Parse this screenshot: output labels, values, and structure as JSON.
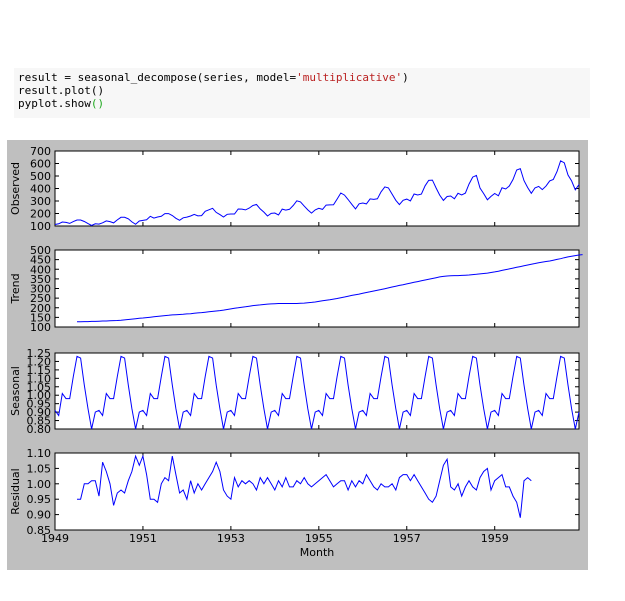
{
  "code": {
    "line1_prefix": "result = seasonal_decompose(series, model=",
    "line1_string": "'multiplicative'",
    "line1_suffix": ")",
    "line2": "result.plot()",
    "line3_prefix": "pyplot.show",
    "line3_paren": "()"
  },
  "colors": {
    "line": "#0000ff",
    "figure_bg": "#bfbfbf",
    "axes_bg": "#ffffff"
  },
  "chart_data": [
    {
      "type": "line",
      "ylabel": "Observed",
      "ylim": [
        100,
        700
      ],
      "yticks": [
        "100",
        "200",
        "300",
        "400",
        "500",
        "600",
        "700"
      ],
      "xlim": [
        1949.0,
        1960.917
      ],
      "start": 1949.0,
      "step": 0.08333,
      "values": [
        112,
        118,
        132,
        129,
        121,
        135,
        148,
        148,
        136,
        119,
        104,
        118,
        115,
        126,
        141,
        135,
        125,
        149,
        170,
        170,
        158,
        133,
        114,
        140,
        145,
        150,
        178,
        163,
        172,
        178,
        199,
        199,
        184,
        162,
        146,
        166,
        171,
        180,
        193,
        181,
        183,
        218,
        230,
        242,
        209,
        191,
        172,
        194,
        196,
        196,
        236,
        235,
        229,
        243,
        264,
        272,
        237,
        211,
        180,
        201,
        204,
        188,
        235,
        227,
        234,
        264,
        302,
        293,
        259,
        229,
        203,
        229,
        242,
        233,
        267,
        269,
        270,
        315,
        364,
        347,
        312,
        274,
        237,
        278,
        284,
        277,
        317,
        313,
        318,
        374,
        413,
        405,
        355,
        306,
        271,
        306,
        315,
        301,
        356,
        348,
        355,
        422,
        465,
        467,
        404,
        347,
        305,
        336,
        340,
        318,
        362,
        348,
        363,
        435,
        491,
        505,
        404,
        359,
        310,
        337,
        360,
        342,
        406,
        396,
        420,
        472,
        548,
        559,
        463,
        407,
        362,
        405,
        417,
        391,
        419,
        461,
        472,
        535,
        622,
        606,
        508,
        461,
        390,
        432
      ]
    },
    {
      "type": "line",
      "ylabel": "Trend",
      "ylim": [
        100,
        500
      ],
      "yticks": [
        "100",
        "150",
        "200",
        "250",
        "300",
        "350",
        "400",
        "450",
        "500"
      ],
      "xlim": [
        1949.0,
        1960.917
      ],
      "start": 1949.5,
      "step": 0.08333,
      "values": [
        127,
        127,
        128,
        128,
        129,
        129,
        130,
        131,
        131,
        132,
        133,
        134,
        135,
        137,
        139,
        141,
        143,
        145,
        147,
        149,
        151,
        153,
        155,
        157,
        159,
        161,
        163,
        164,
        165,
        166,
        168,
        169,
        171,
        173,
        175,
        177,
        179,
        181,
        183,
        185,
        188,
        191,
        194,
        197,
        200,
        203,
        205,
        208,
        211,
        213,
        215,
        217,
        219,
        220,
        221,
        222,
        222,
        222,
        222,
        222,
        222,
        223,
        224,
        226,
        228,
        230,
        233,
        236,
        239,
        242,
        245,
        248,
        252,
        256,
        260,
        264,
        268,
        271,
        275,
        279,
        283,
        287,
        291,
        295,
        299,
        303,
        308,
        312,
        316,
        320,
        324,
        328,
        332,
        336,
        340,
        344,
        348,
        352,
        356,
        360,
        363,
        365,
        366,
        367,
        367,
        368,
        369,
        370,
        372,
        374,
        376,
        378,
        380,
        383,
        386,
        390,
        394,
        398,
        402,
        406,
        410,
        414,
        418,
        422,
        426,
        430,
        434,
        437,
        440,
        443,
        447,
        451,
        455,
        460,
        464,
        468,
        471,
        474,
        476
      ]
    },
    {
      "type": "line",
      "ylabel": "Seasonal",
      "ylim": [
        0.8,
        1.25
      ],
      "yticks": [
        "0.80",
        "0.85",
        "0.90",
        "0.95",
        "1.00",
        "1.05",
        "1.10",
        "1.15",
        "1.20",
        "1.25"
      ],
      "xlim": [
        1949.0,
        1960.917
      ],
      "start": 1949.0,
      "step": 0.08333,
      "pattern": [
        0.91,
        0.88,
        1.01,
        0.98,
        0.98,
        1.11,
        1.23,
        1.22,
        1.06,
        0.92,
        0.8,
        0.9
      ],
      "repeats": 12
    },
    {
      "type": "line",
      "ylabel": "Residual",
      "xlabel": "Month",
      "ylim": [
        0.85,
        1.1
      ],
      "yticks": [
        "0.85",
        "0.90",
        "0.95",
        "1.00",
        "1.05",
        "1.10"
      ],
      "xticks": [
        "1949",
        "1951",
        "1953",
        "1955",
        "1957",
        "1959"
      ],
      "xlim": [
        1949.0,
        1960.917
      ],
      "start": 1949.5,
      "step": 0.08333,
      "values": [
        0.95,
        0.95,
        1.0,
        1.0,
        1.01,
        1.01,
        0.96,
        1.07,
        1.04,
        1.0,
        0.93,
        0.97,
        0.98,
        0.97,
        1.01,
        1.04,
        1.09,
        1.06,
        1.09,
        1.03,
        0.95,
        0.95,
        0.94,
        1.0,
        1.02,
        1.01,
        1.09,
        1.03,
        0.97,
        0.98,
        0.95,
        1.01,
        0.97,
        1.0,
        0.98,
        1.0,
        1.02,
        1.04,
        1.07,
        1.04,
        0.98,
        0.96,
        0.95,
        1.02,
        0.99,
        1.01,
        1.0,
        1.01,
        1.0,
        0.98,
        1.02,
        1.0,
        1.02,
        1.0,
        0.98,
        1.01,
        0.99,
        1.02,
        0.99,
        0.99,
        1.01,
        1.0,
        1.02,
        1.0,
        0.99,
        1.0,
        1.01,
        1.02,
        1.03,
        1.01,
        0.99,
        1.0,
        1.01,
        1.01,
        0.98,
        1.01,
        0.99,
        1.01,
        1.0,
        1.03,
        1.01,
        0.99,
        0.98,
        1.0,
        0.99,
        0.99,
        1.0,
        0.98,
        1.02,
        1.03,
        1.03,
        1.01,
        1.03,
        1.01,
        0.99,
        0.97,
        0.95,
        0.94,
        0.96,
        1.01,
        1.06,
        1.08,
        0.99,
        0.98,
        1.0,
        0.96,
        0.99,
        1.01,
        0.99,
        0.98,
        1.02,
        1.04,
        1.05,
        0.98,
        1.01,
        1.02,
        1.03,
        0.99,
        0.99,
        0.96,
        0.94,
        0.89,
        1.01,
        1.02,
        1.01
      ]
    }
  ]
}
